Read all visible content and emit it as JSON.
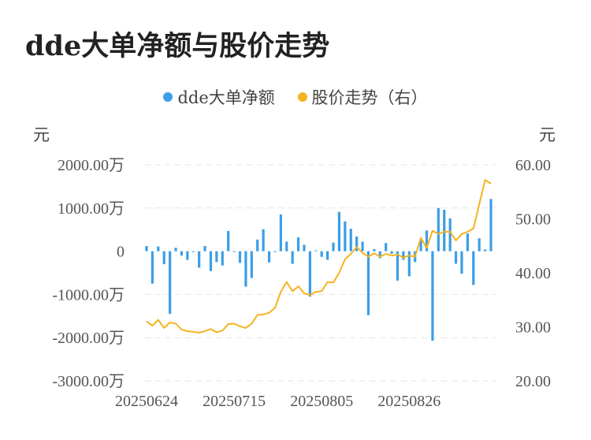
{
  "title": "dde大单净额与股价走势",
  "legend": [
    {
      "label": "dde大单净额",
      "color": "#3b9ee6"
    },
    {
      "label": "股价走势（右）",
      "color": "#f5b320"
    }
  ],
  "chart_data": {
    "type": "bar+line",
    "left_unit": "元",
    "right_unit": "元",
    "left_ticks": [
      "2000.00万",
      "1000.00万",
      "0",
      "-1000.00万",
      "-2000.00万",
      "-3000.00万"
    ],
    "right_ticks": [
      "60.00",
      "50.00",
      "40.00",
      "30.00",
      "20.00"
    ],
    "ylim_left": [
      -3000,
      2000
    ],
    "ylim_right": [
      20,
      60
    ],
    "x_tick_labels": [
      "20250624",
      "20250715",
      "20250805",
      "20250826"
    ],
    "x_tick_positions": [
      0,
      15,
      30,
      45
    ],
    "grid": true,
    "legend_position": "top-center",
    "series": [
      {
        "name": "dde大单净额",
        "type": "bar",
        "axis": "left",
        "values": [
          120,
          -750,
          110,
          -300,
          -1450,
          80,
          -100,
          -200,
          -20,
          -380,
          120,
          -460,
          -250,
          -330,
          470,
          -20,
          -270,
          -820,
          -620,
          270,
          510,
          -260,
          -20,
          850,
          220,
          -290,
          320,
          150,
          -1050,
          20,
          -130,
          -200,
          200,
          910,
          690,
          520,
          340,
          220,
          -1480,
          50,
          -160,
          190,
          -60,
          -680,
          -200,
          -580,
          -250,
          250,
          480,
          -2070,
          1000,
          960,
          760,
          -290,
          -520,
          410,
          -780,
          300,
          40,
          1210
        ]
      },
      {
        "name": "股价走势（右）",
        "type": "line",
        "axis": "right",
        "values": [
          31.0,
          30.2,
          31.3,
          29.8,
          30.8,
          30.6,
          29.5,
          29.2,
          29.1,
          28.9,
          29.2,
          29.6,
          29.0,
          29.3,
          30.5,
          30.6,
          30.1,
          29.8,
          30.6,
          32.2,
          32.3,
          32.6,
          33.5,
          36.5,
          38.3,
          36.6,
          37.5,
          36.2,
          35.9,
          36.5,
          36.6,
          38.3,
          38.2,
          40.0,
          42.5,
          43.5,
          44.8,
          43.7,
          43.0,
          43.6,
          43.0,
          43.5,
          43.2,
          43.4,
          42.8,
          43.2,
          43.0,
          46.5,
          44.6,
          47.8,
          47.2,
          47.6,
          47.6,
          46.0,
          47.2,
          47.6,
          48.2,
          52.7,
          57.2,
          56.5
        ]
      }
    ]
  }
}
